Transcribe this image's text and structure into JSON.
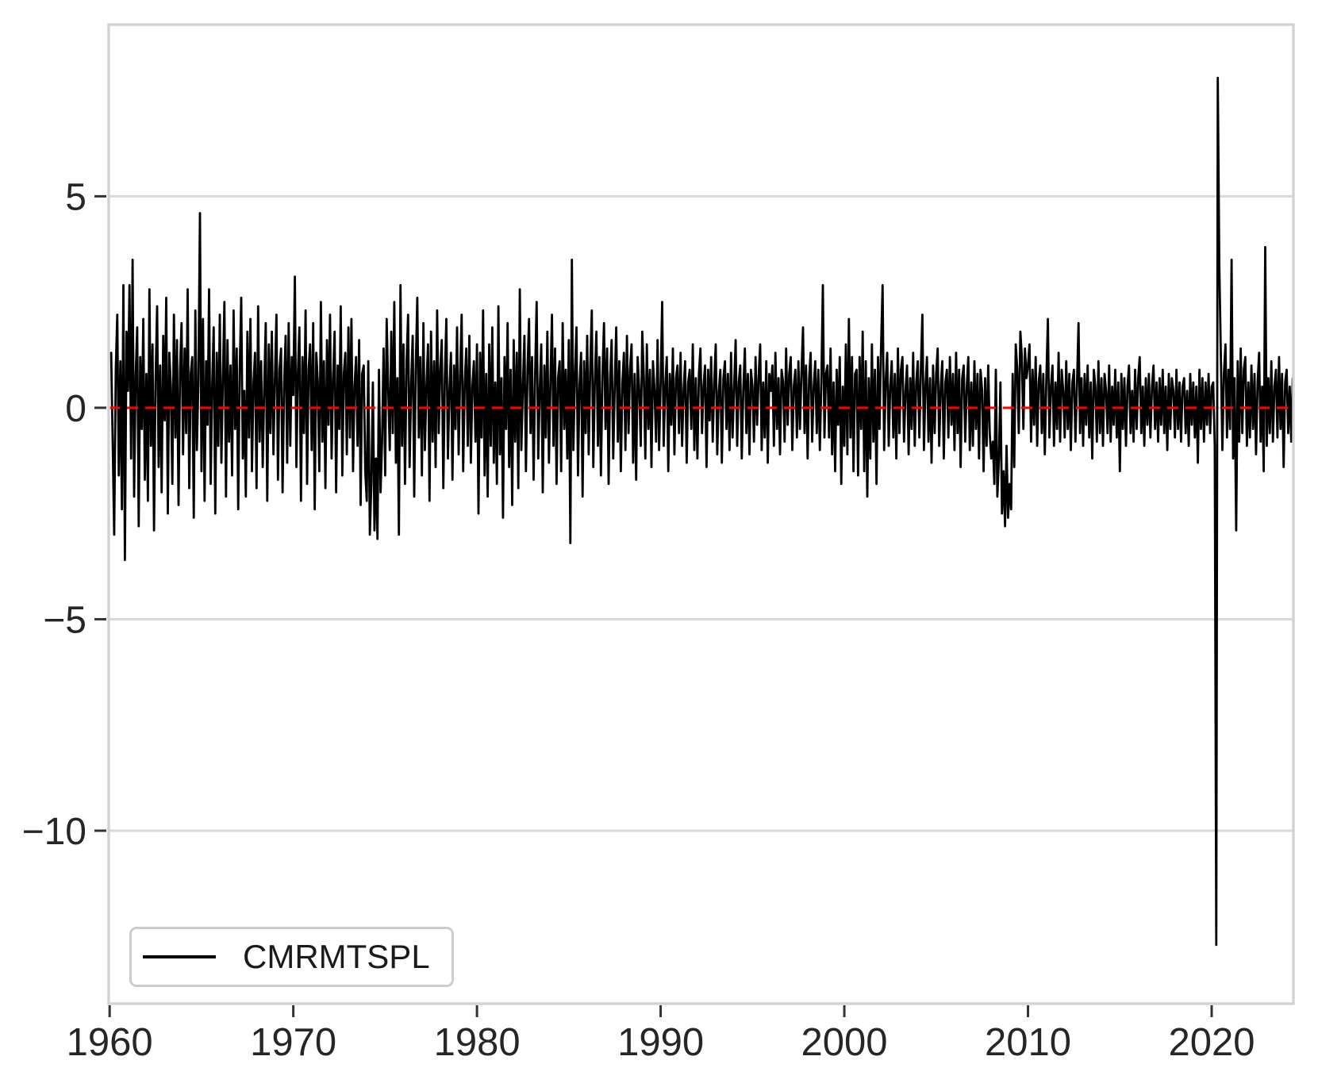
{
  "figure": {
    "background": "#ffffff",
    "colors": {
      "border": "#d2d2d2",
      "grid": "#d8d8d8",
      "tick": "#333333",
      "label": "#262626",
      "series": "#000000",
      "zero_line": "#ff0000"
    }
  },
  "legend": {
    "label": "CMRMTSPL"
  },
  "chart_data": {
    "type": "line",
    "title": "",
    "xlabel": "",
    "ylabel": "",
    "xlim": [
      1959.95,
      2024.45
    ],
    "ylim": [
      -14.09,
      9.06
    ],
    "x_ticks": [
      1960,
      1970,
      1980,
      1990,
      2000,
      2010,
      2020
    ],
    "x_tick_labels": [
      "1960",
      "1970",
      "1980",
      "1990",
      "2000",
      "2010",
      "2020"
    ],
    "y_ticks": [
      5,
      0,
      -5,
      -10
    ],
    "y_tick_labels": [
      "5",
      "0",
      "−5",
      "−10"
    ],
    "grid": "horizontal",
    "legend_position": "lower-left",
    "zero_line": {
      "y": 0,
      "color": "#ff0000",
      "style": "dashed"
    },
    "x_start": 1960.0833,
    "x_step": 0.0833333,
    "series": [
      {
        "name": "CMRMTSPL",
        "color": "#000000",
        "values": [
          1.3,
          -0.8,
          -3.0,
          0.9,
          2.2,
          -1.6,
          1.1,
          -2.4,
          2.9,
          -3.6,
          1.8,
          0.4,
          2.9,
          -1.2,
          3.5,
          -2.1,
          0.7,
          1.9,
          -2.8,
          1.2,
          -0.5,
          2.1,
          -1.7,
          0.8,
          -2.2,
          2.8,
          -0.9,
          1.5,
          -2.9,
          0.6,
          2.4,
          -1.4,
          1.0,
          -2.0,
          1.7,
          -0.3,
          2.6,
          -2.5,
          1.3,
          0.5,
          -1.8,
          2.2,
          -0.7,
          1.6,
          -2.3,
          0.9,
          2.0,
          -1.1,
          1.4,
          -0.6,
          2.8,
          -1.9,
          0.8,
          1.2,
          -2.6,
          2.3,
          -1.0,
          0.6,
          4.6,
          -1.5,
          2.1,
          -2.2,
          1.1,
          -0.4,
          2.8,
          -1.8,
          0.5,
          1.9,
          -2.5,
          1.3,
          -0.9,
          2.2,
          -1.3,
          0.7,
          2.5,
          -2.1,
          1.6,
          -0.8,
          1.0,
          -1.6,
          2.3,
          -0.5,
          1.4,
          -2.4,
          0.9,
          2.6,
          -1.2,
          0.4,
          -2.1,
          1.8,
          -0.7,
          2.1,
          -1.5,
          0.6,
          1.3,
          -1.9,
          2.4,
          -0.8,
          1.1,
          -1.4,
          0.5,
          2.0,
          -2.2,
          1.5,
          -0.6,
          1.8,
          -1.1,
          0.7,
          2.2,
          -1.7,
          0.9,
          1.4,
          -2.0,
          0.6,
          1.7,
          -1.3,
          2.0,
          -0.9,
          1.2,
          0.3,
          3.1,
          -1.4,
          0.8,
          1.9,
          -2.2,
          1.2,
          -0.6,
          2.3,
          -1.8,
          0.9,
          1.5,
          -1.0,
          2.0,
          -2.4,
          1.3,
          0.6,
          -1.5,
          2.5,
          -0.8,
          1.1,
          -1.9,
          1.6,
          -0.4,
          2.2,
          -1.2,
          0.7,
          1.8,
          -2.0,
          1.0,
          -0.5,
          2.4,
          -1.6,
          0.8,
          1.3,
          -1.1,
          1.9,
          -0.7,
          2.1,
          -1.5,
          0.5,
          1.2,
          -0.9,
          1.6,
          -2.3,
          0.8,
          1.0,
          -1.5,
          -2.2,
          1.1,
          -3.0,
          -1.8,
          0.6,
          -2.9,
          -1.2,
          -3.1,
          0.9,
          -2.0,
          -0.8,
          1.4,
          -1.6,
          2.1,
          0.5,
          -1.0,
          1.8,
          -0.6,
          2.5,
          -1.3,
          0.7,
          -3.0,
          2.9,
          -0.9,
          1.5,
          -1.8,
          1.1,
          2.2,
          -1.4,
          0.6,
          1.7,
          -2.1,
          0.9,
          2.6,
          -0.7,
          1.2,
          -1.6,
          2.0,
          -1.0,
          0.5,
          1.5,
          -2.2,
          1.8,
          -0.8,
          1.1,
          -1.4,
          2.3,
          -0.6,
          0.9,
          1.6,
          -1.9,
          0.7,
          2.1,
          -1.2,
          0.4,
          1.3,
          -1.7,
          1.0,
          -0.5,
          1.9,
          -1.1,
          0.8,
          2.2,
          -1.5,
          0.6,
          1.4,
          -0.9,
          1.7,
          -1.3,
          0.5,
          1.1,
          -0.8,
          1.5,
          -2.5,
          1.3,
          -0.7,
          2.3,
          -1.6,
          0.8,
          -2.1,
          1.5,
          -0.9,
          1.9,
          -1.3,
          0.6,
          -1.8,
          2.4,
          -1.1,
          0.7,
          -2.6,
          1.2,
          -0.5,
          2.0,
          -1.4,
          0.9,
          -2.3,
          1.6,
          -0.8,
          1.3,
          -1.9,
          2.8,
          -1.0,
          0.5,
          1.7,
          -1.5,
          0.9,
          2.1,
          -0.6,
          1.2,
          -1.7,
          0.8,
          2.5,
          -1.2,
          0.4,
          1.5,
          -2.0,
          1.0,
          -0.7,
          1.8,
          -1.3,
          0.6,
          2.2,
          -0.9,
          1.4,
          -1.8,
          0.7,
          1.1,
          -1.5,
          2.0,
          -0.5,
          0.9,
          -1.2,
          1.6,
          -3.2,
          3.5,
          -1.0,
          0.8,
          1.9,
          -1.6,
          0.5,
          1.3,
          -2.1,
          1.1,
          -0.6,
          1.7,
          -1.1,
          0.9,
          2.3,
          -1.4,
          0.6,
          1.8,
          -0.9,
          1.2,
          -1.6,
          0.8,
          2.0,
          -0.5,
          1.4,
          -1.8,
          0.7,
          1.6,
          -1.2,
          0.5,
          1.9,
          -0.8,
          1.1,
          -1.5,
          0.6,
          1.3,
          -1.0,
          1.7,
          -0.6,
          0.9,
          1.5,
          -1.3,
          0.8,
          -1.7,
          1.2,
          0.4,
          -0.9,
          1.8,
          0.7,
          -1.2,
          1.5,
          -0.5,
          0.9,
          -1.4,
          1.1,
          0.4,
          -0.8,
          1.6,
          -1.0,
          0.6,
          2.5,
          -0.9,
          0.5,
          1.2,
          -1.5,
          0.8,
          -0.4,
          1.4,
          -1.1,
          0.7,
          1.0,
          -0.6,
          1.3,
          -0.9,
          0.4,
          1.1,
          -1.3,
          0.6,
          0.9,
          -0.5,
          1.5,
          -1.0,
          0.7,
          -1.2,
          0.8,
          1.4,
          -0.6,
          0.5,
          1.0,
          -1.4,
          0.9,
          -0.3,
          1.2,
          -0.8,
          0.6,
          1.5,
          -1.1,
          0.4,
          0.9,
          -1.3,
          0.7,
          1.1,
          -0.5,
          0.8,
          -1.0,
          1.3,
          -0.7,
          0.5,
          1.6,
          -0.9,
          0.6,
          1.0,
          -1.2,
          0.4,
          1.4,
          -0.6,
          0.8,
          -1.1,
          0.9,
          0.5,
          -0.8,
          1.2,
          -0.4,
          0.7,
          1.5,
          -1.0,
          0.6,
          -0.7,
          1.1,
          -1.3,
          0.8,
          0.4,
          1.0,
          -0.9,
          1.3,
          -0.5,
          0.7,
          -1.1,
          0.9,
          0.6,
          -0.8,
          1.4,
          -0.4,
          0.8,
          1.2,
          -1.0,
          0.5,
          0.9,
          -0.7,
          1.1,
          -0.5,
          0.8,
          1.9,
          -0.6,
          1.0,
          -1.2,
          0.7,
          1.3,
          -0.8,
          0.5,
          1.1,
          -0.6,
          0.9,
          -1.0,
          0.6,
          2.9,
          -0.7,
          0.8,
          1.0,
          -0.7,
          1.4,
          -1.1,
          0.6,
          -1.5,
          0.9,
          -0.4,
          1.2,
          -1.8,
          0.5,
          -0.9,
          1.5,
          -1.1,
          2.1,
          -0.7,
          1.2,
          -1.5,
          0.8,
          0.9,
          -1.6,
          1.2,
          -0.5,
          1.8,
          -1.5,
          1.1,
          -2.1,
          0.7,
          -1.2,
          1.5,
          -0.8,
          0.9,
          -1.8,
          1.2,
          -0.5,
          1.4,
          2.9,
          -1.0,
          0.6,
          1.3,
          -0.9,
          0.5,
          1.1,
          -0.7,
          0.8,
          -1.2,
          1.4,
          -0.6,
          0.9,
          1.2,
          -0.8,
          0.4,
          1.0,
          -1.1,
          0.7,
          -0.5,
          1.3,
          -0.9,
          0.6,
          1.1,
          -0.7,
          0.9,
          2.2,
          -1.0,
          0.5,
          1.2,
          -0.8,
          0.7,
          -1.3,
          1.0,
          -0.6,
          0.8,
          1.4,
          -0.9,
          0.5,
          1.1,
          -1.2,
          0.6,
          0.9,
          -0.7,
          1.2,
          -0.4,
          0.8,
          -1.0,
          1.3,
          -0.6,
          0.9,
          -1.4,
          0.7,
          1.0,
          -0.8,
          0.5,
          1.2,
          -1.0,
          0.6,
          -0.9,
          1.1,
          -0.5,
          0.8,
          -1.2,
          0.9,
          0.4,
          -1.5,
          0.7,
          -0.9,
          1.0,
          -0.6,
          -1.2,
          -0.8,
          -1.8,
          0.9,
          -2.1,
          -1.2,
          0.6,
          -2.5,
          -1.5,
          -2.8,
          -0.9,
          -2.6,
          -1.8,
          -2.4,
          0.8,
          -1.4,
          1.5,
          0.9,
          -0.6,
          1.8,
          1.2,
          -0.5,
          1.4,
          0.7,
          1.0,
          1.5,
          -0.8,
          0.9,
          -0.4,
          1.2,
          -0.9,
          0.6,
          1.0,
          -0.6,
          0.8,
          -1.1,
          0.7,
          2.1,
          -0.7,
          0.5,
          1.0,
          -0.9,
          0.6,
          -0.5,
          1.3,
          -0.8,
          0.9,
          0.4,
          -0.7,
          1.1,
          -0.5,
          0.8,
          -1.0,
          0.6,
          0.9,
          -0.8,
          0.5,
          2.0,
          -0.6,
          0.7,
          -0.9,
          0.8,
          -0.4,
          1.0,
          -0.7,
          0.6,
          -1.2,
          0.9,
          0.5,
          -0.8,
          1.1,
          -0.6,
          0.7,
          -0.9,
          0.8,
          0.4,
          -0.6,
          1.0,
          -0.8,
          0.5,
          -0.4,
          0.9,
          -0.7,
          0.6,
          -1.5,
          0.8,
          -0.5,
          0.7,
          -0.9,
          0.5,
          1.0,
          -0.6,
          0.4,
          -0.8,
          0.9,
          -0.5,
          0.7,
          1.2,
          -0.6,
          0.5,
          -0.9,
          0.7,
          -0.4,
          0.8,
          -0.7,
          0.5,
          1.0,
          -0.5,
          0.6,
          -0.8,
          0.7,
          -0.4,
          0.9,
          -0.6,
          0.5,
          -1.0,
          0.8,
          -0.5,
          0.7,
          0.4,
          -0.7,
          0.9,
          -0.5,
          0.6,
          -0.8,
          0.5,
          0.7,
          -0.6,
          0.4,
          -0.9,
          0.8,
          -0.4,
          0.6,
          -0.7,
          0.5,
          -1.3,
          0.9,
          -0.5,
          0.7,
          -0.8,
          0.6,
          -0.4,
          0.8,
          -0.6,
          0.5,
          0.6,
          -0.9,
          -12.7,
          7.8,
          3.4,
          1.2,
          -1.0,
          0.8,
          1.5,
          -0.7,
          0.9,
          -0.5,
          3.5,
          -1.2,
          0.7,
          -2.9,
          1.1,
          -0.8,
          1.4,
          -0.6,
          0.9,
          1.2,
          -0.9,
          0.6,
          -0.7,
          1.0,
          -0.5,
          0.8,
          -1.1,
          0.6,
          1.3,
          -0.8,
          0.5,
          -1.5,
          3.8,
          -0.9,
          0.7,
          -0.6,
          1.1,
          -0.8,
          0.5,
          0.9,
          -0.7,
          1.2,
          -0.5,
          0.8,
          -1.4,
          0.6,
          0.9,
          -0.6,
          0.5,
          -0.8,
          0.7
        ]
      }
    ]
  }
}
